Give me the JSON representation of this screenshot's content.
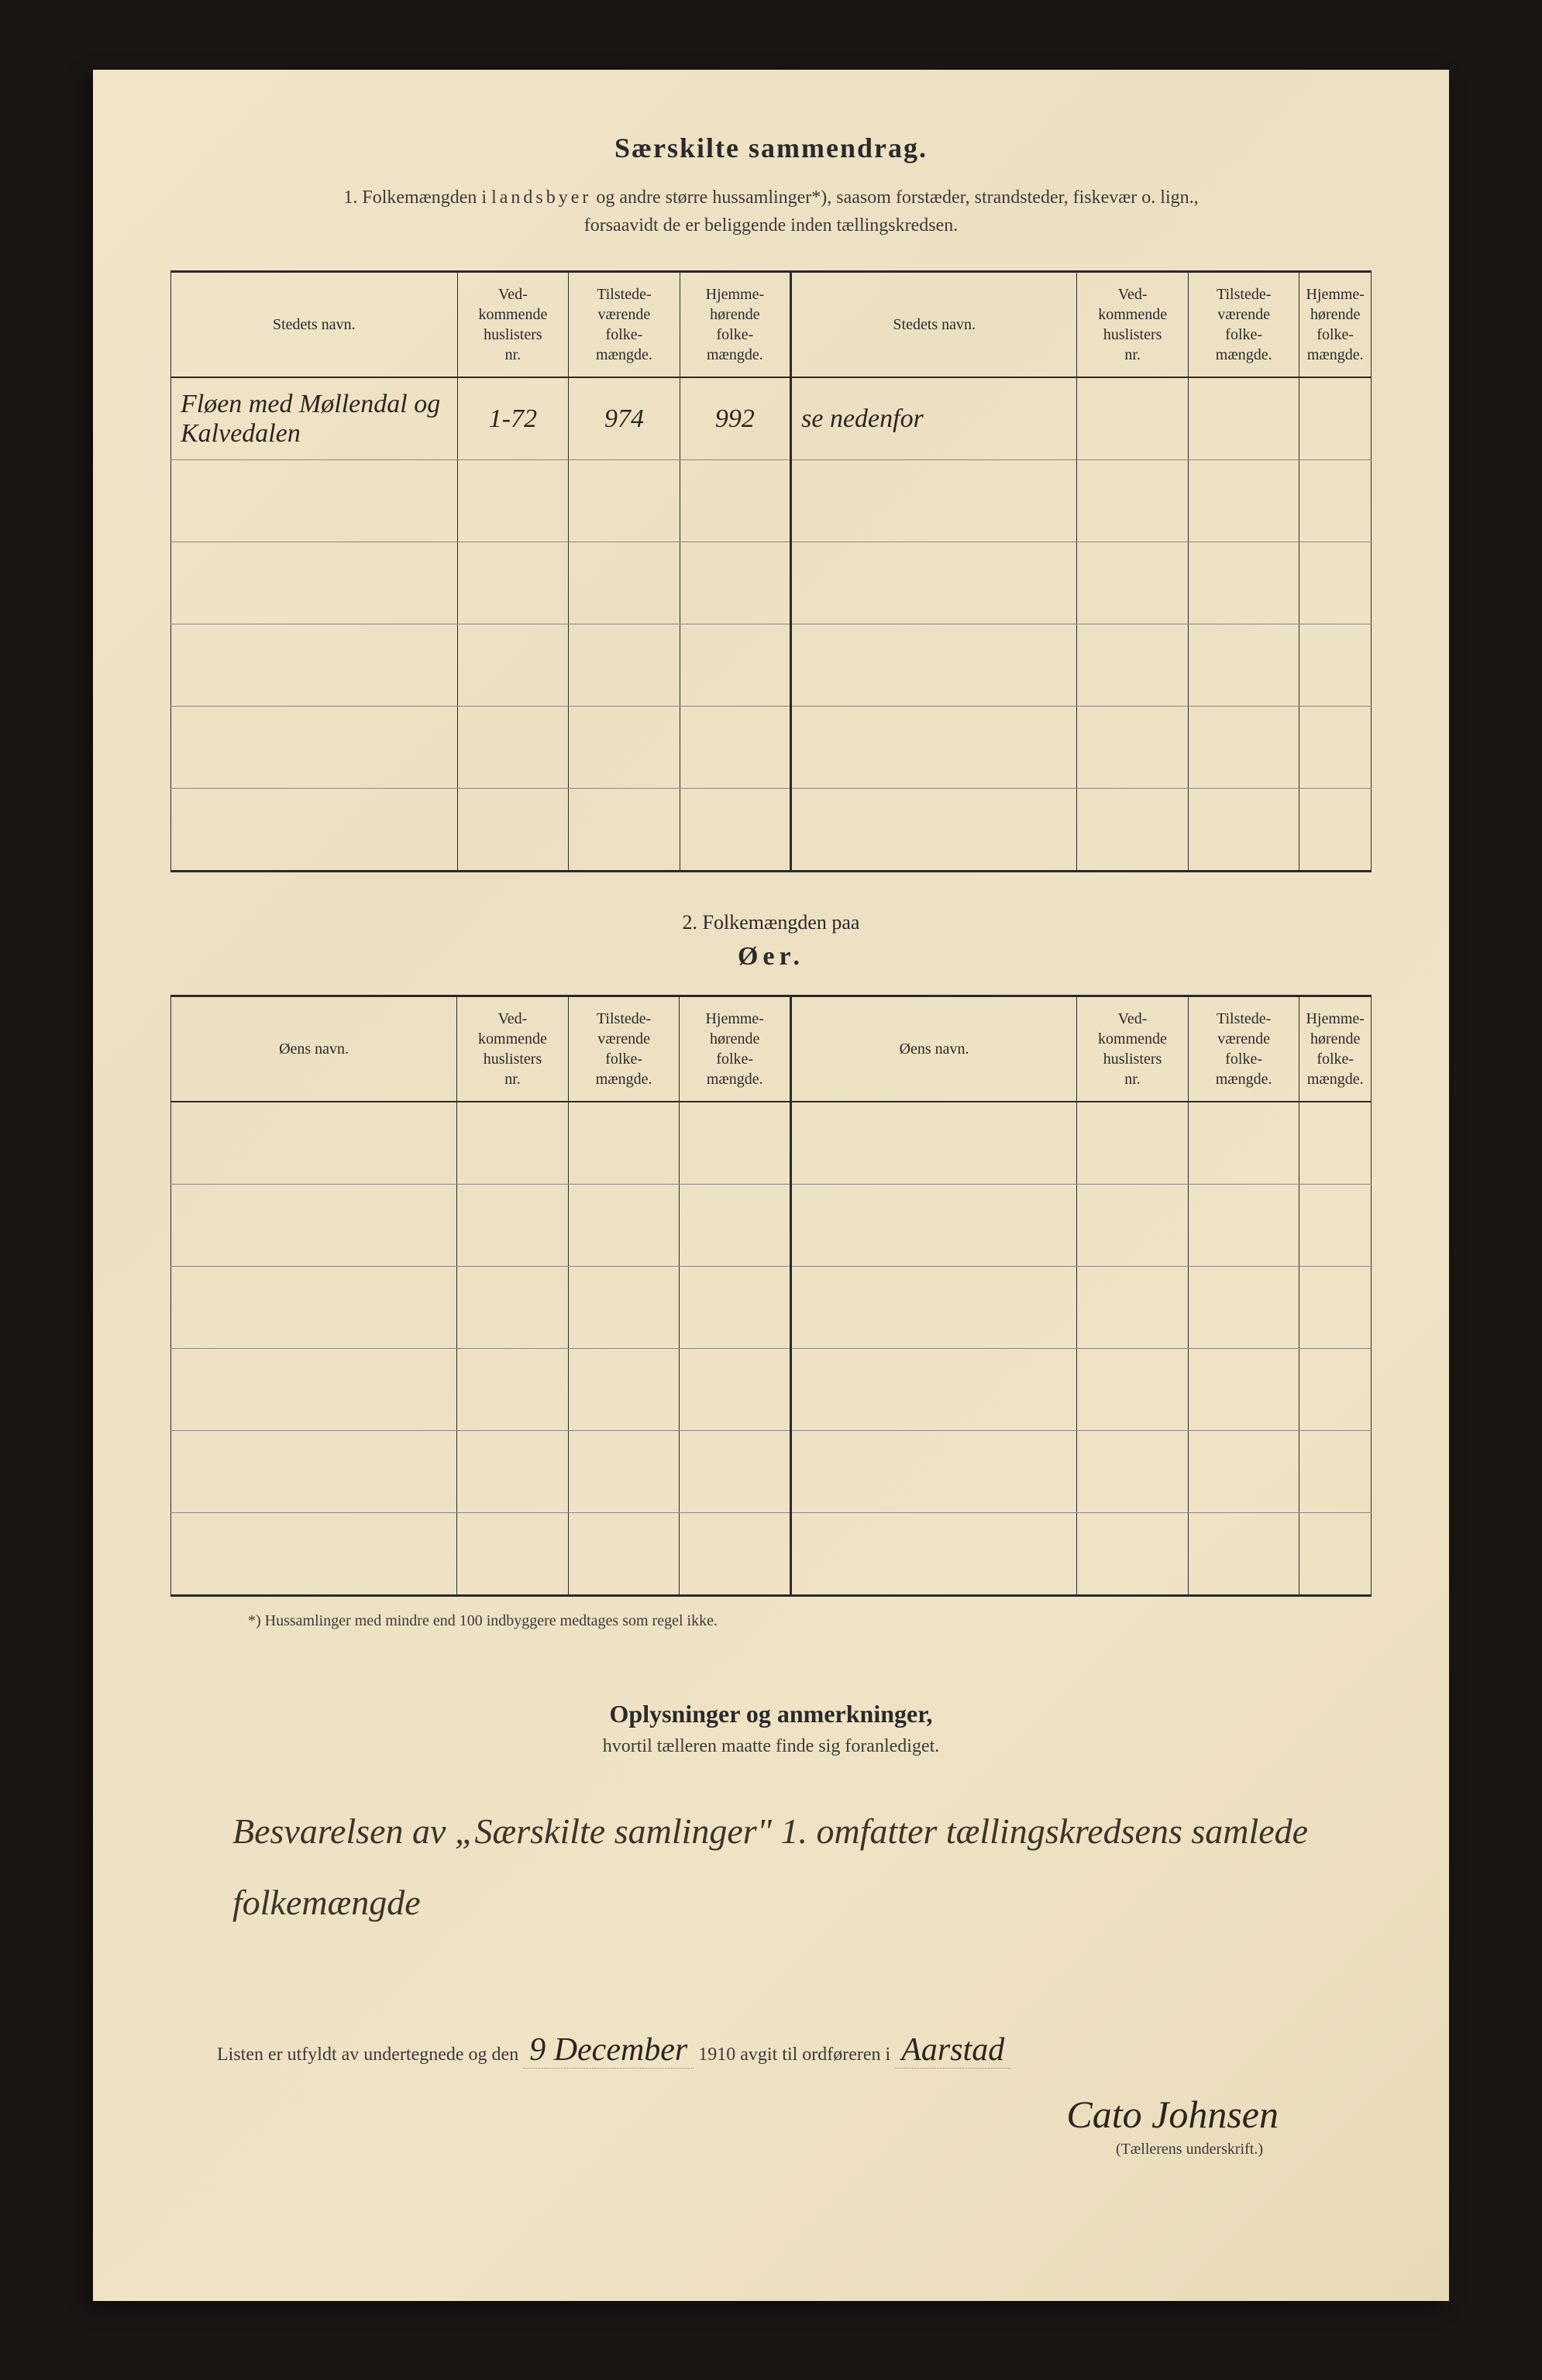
{
  "header": {
    "title": "Særskilte sammendrag.",
    "subtitle_num": "1.",
    "subtitle_text_a": "Folkemængden i ",
    "subtitle_spaced": "landsbyer",
    "subtitle_text_b": " og andre større hussamlinger*), saasom forstæder, strandsteder, fiskevær o. lign.,",
    "subtitle_line2": "forsaavidt de er beliggende inden tællingskredsen."
  },
  "table1": {
    "cols": {
      "name": "Stedets navn.",
      "huslister": "Ved-\nkommende\nhuslisters\nnr.",
      "tilstede": "Tilstede-\nværende\nfolke-\nmængde.",
      "hjemme": "Hjemme-\nhørende\nfolke-\nmængde."
    },
    "rows": [
      {
        "name_l": "Fløen med Møllendal og Kalvedalen",
        "hus_l": "1-72",
        "til_l": "974",
        "hje_l": "992",
        "name_r": "se nedenfor",
        "hus_r": "",
        "til_r": "",
        "hje_r": ""
      },
      {
        "name_l": "",
        "hus_l": "",
        "til_l": "",
        "hje_l": "",
        "name_r": "",
        "hus_r": "",
        "til_r": "",
        "hje_r": ""
      },
      {
        "name_l": "",
        "hus_l": "",
        "til_l": "",
        "hje_l": "",
        "name_r": "",
        "hus_r": "",
        "til_r": "",
        "hje_r": ""
      },
      {
        "name_l": "",
        "hus_l": "",
        "til_l": "",
        "hje_l": "",
        "name_r": "",
        "hus_r": "",
        "til_r": "",
        "hje_r": ""
      },
      {
        "name_l": "",
        "hus_l": "",
        "til_l": "",
        "hje_l": "",
        "name_r": "",
        "hus_r": "",
        "til_r": "",
        "hje_r": ""
      },
      {
        "name_l": "",
        "hus_l": "",
        "til_l": "",
        "hje_l": "",
        "name_r": "",
        "hus_r": "",
        "til_r": "",
        "hje_r": ""
      }
    ]
  },
  "section2": {
    "title": "2.   Folkemængden paa",
    "sub": "Øer."
  },
  "table2": {
    "cols": {
      "name": "Øens navn.",
      "huslister": "Ved-\nkommende\nhuslisters\nnr.",
      "tilstede": "Tilstede-\nværende\nfolke-\nmængde.",
      "hjemme": "Hjemme-\nhørende\nfolke-\nmængde."
    },
    "rows": [
      {
        "a": "",
        "b": "",
        "c": "",
        "d": "",
        "e": "",
        "f": "",
        "g": "",
        "h": ""
      },
      {
        "a": "",
        "b": "",
        "c": "",
        "d": "",
        "e": "",
        "f": "",
        "g": "",
        "h": ""
      },
      {
        "a": "",
        "b": "",
        "c": "",
        "d": "",
        "e": "",
        "f": "",
        "g": "",
        "h": ""
      },
      {
        "a": "",
        "b": "",
        "c": "",
        "d": "",
        "e": "",
        "f": "",
        "g": "",
        "h": ""
      },
      {
        "a": "",
        "b": "",
        "c": "",
        "d": "",
        "e": "",
        "f": "",
        "g": "",
        "h": ""
      },
      {
        "a": "",
        "b": "",
        "c": "",
        "d": "",
        "e": "",
        "f": "",
        "g": "",
        "h": ""
      }
    ]
  },
  "footnote": "*) Hussamlinger med mindre end 100 indbyggere medtages som regel ikke.",
  "remarks": {
    "title": "Oplysninger og anmerkninger,",
    "sub": "hvortil tælleren maatte finde sig foranlediget.",
    "handwritten": "Besvarelsen av „Særskilte samlinger\" 1. omfatter tællingskredsens samlede folkemængde"
  },
  "footer": {
    "line_a": "Listen er utfyldt av undertegnede og den",
    "date": "9 December",
    "year_print": "1910",
    "line_b": " avgit til ordføreren i",
    "place": "Aarstad",
    "signature": "Cato Johnsen",
    "sig_label": "(Tællerens underskrift.)"
  },
  "style": {
    "paper_bg": "#f0e3c5",
    "ink": "#2a2a2a",
    "hw_ink": "#2a2620"
  }
}
